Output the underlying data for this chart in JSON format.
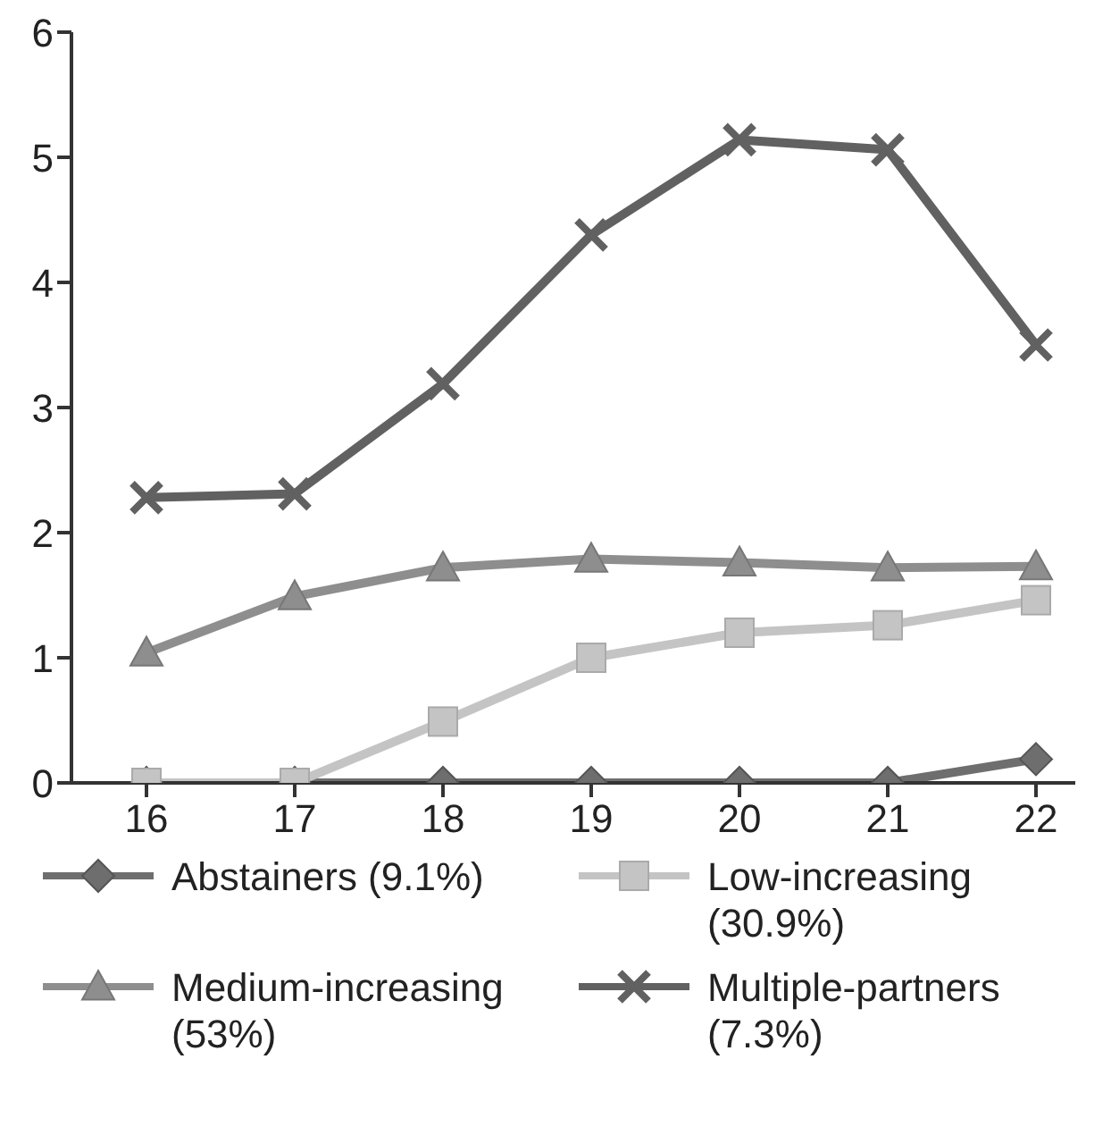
{
  "chart_data": {
    "type": "line",
    "categories": [
      "16",
      "17",
      "18",
      "19",
      "20",
      "21",
      "22"
    ],
    "ylim": [
      0,
      6
    ],
    "yticks": [
      0,
      1,
      2,
      3,
      4,
      5,
      6
    ],
    "grid": false,
    "legend": "bottom",
    "series": [
      {
        "name": "Abstainers (9.1%)",
        "color": "#6e6e6e",
        "marker": "diamond",
        "values": [
          0,
          0,
          0,
          0,
          0,
          0,
          0.19
        ]
      },
      {
        "name": "Low-increasing (30.9%)",
        "color": "#c4c4c4",
        "marker": "square",
        "values": [
          0,
          0,
          0.49,
          1.0,
          1.2,
          1.26,
          1.46
        ]
      },
      {
        "name": "Medium-increasing (53%)",
        "color": "#8e8e8e",
        "marker": "triangle",
        "values": [
          1.04,
          1.49,
          1.72,
          1.79,
          1.76,
          1.72,
          1.73
        ]
      },
      {
        "name": "Multiple-partners (7.3%)",
        "color": "#616161",
        "marker": "cross",
        "values": [
          2.28,
          2.31,
          3.19,
          4.38,
          5.14,
          5.06,
          3.5
        ]
      }
    ]
  }
}
